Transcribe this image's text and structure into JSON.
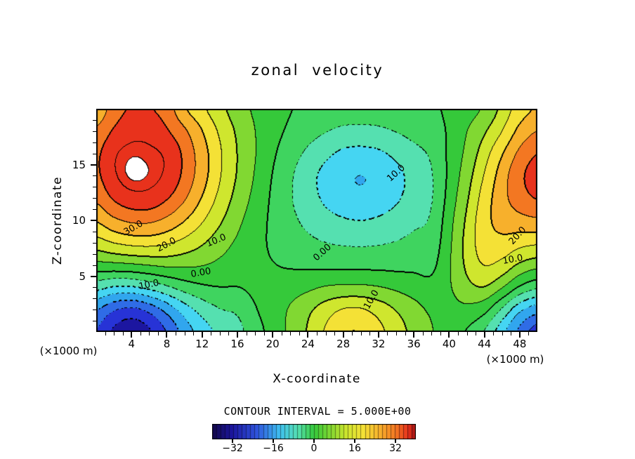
{
  "title": "zonal velocity",
  "contour_note": "CONTOUR INTERVAL = 5.000E+00",
  "axes": {
    "x": {
      "label": "X-coordinate",
      "unit_left": "(×1000 m)",
      "unit_right": "(×1000 m)",
      "min": 0,
      "max": 50,
      "major_ticks": [
        4,
        8,
        12,
        16,
        20,
        24,
        28,
        32,
        36,
        40,
        44,
        48
      ],
      "minor_step": 1
    },
    "z": {
      "label": "Z-coordinate",
      "min": 0,
      "max": 20,
      "major_ticks": [
        5,
        10,
        15
      ],
      "minor_step": 1
    }
  },
  "palette": {
    "above_max": 36.8,
    "above_max_color": "#ffffff",
    "bands": [
      {
        "from": -40,
        "color": "#140a52"
      },
      {
        "from": -35,
        "color": "#1c16a0"
      },
      {
        "from": -30,
        "color": "#2733d6"
      },
      {
        "from": -25,
        "color": "#2f6ce6"
      },
      {
        "from": -20,
        "color": "#31a6ee"
      },
      {
        "from": -15,
        "color": "#45d5f2"
      },
      {
        "from": -10,
        "color": "#55e0b0"
      },
      {
        "from": -5,
        "color": "#3fd45f"
      },
      {
        "from": 0,
        "color": "#35c93a"
      },
      {
        "from": 5,
        "color": "#81d832"
      },
      {
        "from": 10,
        "color": "#cfe62e"
      },
      {
        "from": 15,
        "color": "#f4e136"
      },
      {
        "from": 20,
        "color": "#f7b02c"
      },
      {
        "from": 25,
        "color": "#f37722"
      },
      {
        "from": 30,
        "color": "#e8321c"
      }
    ]
  },
  "colorbar": {
    "min": -40,
    "max": 40,
    "tick_values": [
      -32,
      -16,
      0,
      16,
      32
    ],
    "tick_labels": [
      "−32",
      "−16",
      "0",
      "16",
      "32"
    ],
    "stops": [
      {
        "p": 0.0,
        "color": "#120848"
      },
      {
        "p": 0.1,
        "color": "#1c16a0"
      },
      {
        "p": 0.22,
        "color": "#2f55dd"
      },
      {
        "p": 0.33,
        "color": "#3fc0f0"
      },
      {
        "p": 0.42,
        "color": "#55e0b0"
      },
      {
        "p": 0.5,
        "color": "#35c93a"
      },
      {
        "p": 0.58,
        "color": "#81d832"
      },
      {
        "p": 0.66,
        "color": "#cfe62e"
      },
      {
        "p": 0.74,
        "color": "#f4e136"
      },
      {
        "p": 0.82,
        "color": "#f7b02c"
      },
      {
        "p": 0.9,
        "color": "#f37722"
      },
      {
        "p": 0.96,
        "color": "#e8321c"
      },
      {
        "p": 1.0,
        "color": "#a01212"
      }
    ]
  },
  "contour_labels": [
    {
      "text": "30.0",
      "x": 4.2,
      "z": 9.3,
      "rot": -30
    },
    {
      "text": "20.0",
      "x": 8.0,
      "z": 7.8,
      "rot": -28
    },
    {
      "text": "10.0",
      "x": 13.6,
      "z": 8.2,
      "rot": -22
    },
    {
      "text": "0.00",
      "x": 11.9,
      "z": 5.3,
      "rot": -10
    },
    {
      "text": "10.0",
      "x": 6.0,
      "z": 4.2,
      "rot": -12
    },
    {
      "text": "0.00",
      "x": 25.6,
      "z": 7.1,
      "rot": -42
    },
    {
      "text": "10.0",
      "x": 34.0,
      "z": 14.2,
      "rot": -42
    },
    {
      "text": "10.0",
      "x": 31.2,
      "z": 2.9,
      "rot": -60
    },
    {
      "text": "10.0",
      "x": 47.2,
      "z": 6.5,
      "rot": -10
    },
    {
      "text": "20.0",
      "x": 47.8,
      "z": 8.6,
      "rot": -48
    }
  ],
  "chart_data": {
    "type": "heatmap",
    "subtype": "filled_contour_plot",
    "title": "zonal velocity",
    "xlabel": "X-coordinate",
    "ylabel": "Z-coordinate",
    "units": "×1000 m",
    "contour_interval": 5,
    "xlim": [
      0,
      50
    ],
    "zlim": [
      0,
      20
    ],
    "value_range": [
      -40,
      40
    ],
    "x": [
      0,
      2,
      4,
      6,
      8,
      10,
      12,
      14,
      16,
      18,
      20,
      22,
      24,
      26,
      28,
      30,
      32,
      34,
      36,
      38,
      40,
      42,
      44,
      46,
      48,
      50
    ],
    "z": [
      0,
      2,
      4,
      6,
      8,
      10,
      12,
      14,
      16,
      18,
      20
    ],
    "values": [
      [
        -25.3,
        -31.0,
        -33.6,
        -30.8,
        -24.8,
        -18.1,
        -12.6,
        -9.0,
        -6.7,
        -2.0,
        1.8,
        6.1,
        10.5,
        15.5,
        19.5,
        19.8,
        16.5,
        12.5,
        8.5,
        5.4,
        2.0,
        -0.4,
        -5.1,
        -13.3,
        -21.4,
        -27.5
      ],
      [
        -19.8,
        -24.3,
        -26.0,
        -23.4,
        -18.2,
        -12.5,
        -8.1,
        -5.2,
        -4.1,
        -0.4,
        2.3,
        5.5,
        8.9,
        12.5,
        15.2,
        15.4,
        13.0,
        9.7,
        6.8,
        4.2,
        3.4,
        3.8,
        1.5,
        -5.6,
        -13.7,
        -17.7
      ],
      [
        -8.3,
        -10.5,
        -10.6,
        -8.6,
        -5.8,
        -2.8,
        -0.9,
        -0.1,
        -0.1,
        1.0,
        1.6,
        2.7,
        3.9,
        5.3,
        5.9,
        5.9,
        5.2,
        4.0,
        2.6,
        1.5,
        4.4,
        8.4,
        9.8,
        5.4,
        -0.7,
        -4.1
      ],
      [
        3.5,
        3.8,
        4.4,
        5.3,
        6.1,
        6.0,
        5.3,
        3.9,
        2.3,
        1.2,
        0.2,
        -0.5,
        -0.8,
        -1.2,
        -1.3,
        -1.3,
        -1.3,
        -1.4,
        -1.2,
        -1.1,
        4.4,
        10.9,
        15.1,
        13.4,
        9.1,
        6.8
      ],
      [
        12.9,
        15.2,
        16.6,
        16.9,
        15.8,
        13.5,
        10.6,
        7.3,
        4.3,
        1.5,
        -0.7,
        -2.5,
        -3.9,
        -5.0,
        -5.6,
        -5.8,
        -5.5,
        -4.8,
        -3.8,
        -2.9,
        3.8,
        11.6,
        17.6,
        18.5,
        16.8,
        15.9
      ],
      [
        20.4,
        24.0,
        26.0,
        26.1,
        23.9,
        20.2,
        15.6,
        10.8,
        6.3,
        2.5,
        -1.0,
        -3.8,
        -6.2,
        -8.2,
        -9.5,
        -10.0,
        -9.3,
        -7.8,
        -6.0,
        -4.3,
        3.0,
        10.8,
        18.2,
        21.8,
        23.3,
        24.2
      ],
      [
        26.0,
        30.6,
        33.2,
        33.2,
        30.4,
        25.7,
        19.7,
        13.7,
        8.2,
        3.7,
        -0.8,
        -4.5,
        -7.9,
        -10.9,
        -13.1,
        -13.9,
        -12.9,
        -10.7,
        -7.9,
        -5.4,
        1.8,
        9.3,
        17.2,
        23.2,
        27.6,
        30.3
      ],
      [
        29.0,
        34.2,
        37.2,
        36.6,
        34.0,
        28.7,
        22.2,
        15.5,
        9.6,
        4.7,
        -0.2,
        -4.2,
        -8.1,
        -11.5,
        -14.0,
        -15.0,
        -13.9,
        -11.4,
        -8.3,
        -5.4,
        1.0,
        7.7,
        15.2,
        22.5,
        28.7,
        32.5
      ],
      [
        29.0,
        34.2,
        36.4,
        35.9,
        34.1,
        28.8,
        22.3,
        15.8,
        9.9,
        5.3,
        0.8,
        -2.8,
        -5.9,
        -8.8,
        -11.0,
        -11.6,
        -10.8,
        -8.8,
        -6.4,
        -4.2,
        0.9,
        6.1,
        12.7,
        19.6,
        26.0,
        29.9
      ],
      [
        26.0,
        30.6,
        33.2,
        33.2,
        30.5,
        25.9,
        20.1,
        14.3,
        9.2,
        5.1,
        1.7,
        -0.9,
        -3.0,
        -4.7,
        -6.0,
        -6.3,
        -5.9,
        -4.8,
        -3.5,
        -2.3,
        0.7,
        4.8,
        9.4,
        14.9,
        21.5,
        25.0
      ],
      [
        20.8,
        27.5,
        30.5,
        30.3,
        27.8,
        20.7,
        16.2,
        11.6,
        7.5,
        4.3,
        2.1,
        0.2,
        -1.0,
        -1.8,
        -2.4,
        -2.5,
        -2.4,
        -2.0,
        -1.5,
        -1.0,
        1.0,
        2.9,
        5.8,
        11.5,
        17.5,
        20.5
      ]
    ]
  }
}
